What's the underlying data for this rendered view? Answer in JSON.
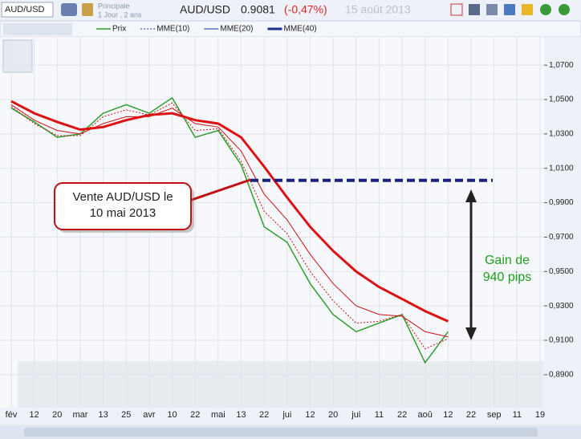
{
  "toolbar": {
    "symbol": "AUD/USD",
    "layout": "Principale",
    "period": "1 Jour , 2 ans",
    "title": "AUD/USD",
    "price": "0.9081",
    "change": "(-0,47%)",
    "date": "15 août 2013"
  },
  "chart_data": {
    "type": "line",
    "categories": [
      "fév",
      "12",
      "20",
      "mar",
      "13",
      "25",
      "avr",
      "10",
      "22",
      "mai",
      "13",
      "22",
      "jui",
      "12",
      "20",
      "jui",
      "11",
      "22",
      "aoû",
      "12",
      "22",
      "sep",
      "11",
      "19"
    ],
    "series": [
      {
        "name": "Prix",
        "color": "#2e9e2e",
        "line_width": 1.5,
        "values": [
          1.045,
          1.037,
          1.028,
          1.03,
          1.042,
          1.047,
          1.042,
          1.051,
          1.028,
          1.032,
          1.012,
          0.976,
          0.967,
          0.943,
          0.925,
          0.915,
          0.92,
          0.925,
          0.897,
          0.915,
          null,
          null,
          null,
          null
        ]
      },
      {
        "name": "MME(10)",
        "color": "#cc1010",
        "line_width": 1,
        "dashed": true,
        "values": [
          1.046,
          1.036,
          1.029,
          1.029,
          1.04,
          1.044,
          1.041,
          1.048,
          1.032,
          1.033,
          1.014,
          0.985,
          0.972,
          0.95,
          0.933,
          0.92,
          0.921,
          0.925,
          0.905,
          0.911,
          null,
          null,
          null,
          null
        ]
      },
      {
        "name": "MME(20)",
        "color": "#cc1010",
        "line_width": 1,
        "values": [
          1.047,
          1.038,
          1.032,
          1.03,
          1.036,
          1.04,
          1.04,
          1.045,
          1.036,
          1.034,
          1.02,
          0.995,
          0.98,
          0.96,
          0.943,
          0.93,
          0.925,
          0.924,
          0.915,
          0.912,
          null,
          null,
          null,
          null
        ]
      },
      {
        "name": "MME(40)",
        "color": "#dd1111",
        "line_width": 3,
        "values": [
          1.049,
          1.042,
          1.037,
          1.0325,
          1.034,
          1.038,
          1.041,
          1.042,
          1.038,
          1.036,
          1.028,
          1.011,
          0.993,
          0.976,
          0.962,
          0.95,
          0.941,
          0.934,
          0.927,
          0.921,
          null,
          null,
          null,
          null
        ]
      }
    ],
    "ylim": [
      0.8708,
      1.0864
    ],
    "yticks": [
      {
        "value": 1.07,
        "label": "1,0700"
      },
      {
        "value": 1.05,
        "label": "1,0500"
      },
      {
        "value": 1.03,
        "label": "1,0300"
      },
      {
        "value": 1.01,
        "label": "1,0100"
      },
      {
        "value": 0.99,
        "label": "0,9900"
      },
      {
        "value": 0.97,
        "label": "0,9700"
      },
      {
        "value": 0.95,
        "label": "0,9500"
      },
      {
        "value": 0.93,
        "label": "0,9300"
      },
      {
        "value": 0.91,
        "label": "0,9100"
      },
      {
        "value": 0.89,
        "label": "0,8900"
      }
    ],
    "grid": true,
    "sell_level": 1.003,
    "annotations": {
      "sell_line1": "Vente AUD/USD le",
      "sell_line2": "10 mai 2013",
      "gain_line1": "Gain de",
      "gain_line2": "940 pips"
    }
  }
}
